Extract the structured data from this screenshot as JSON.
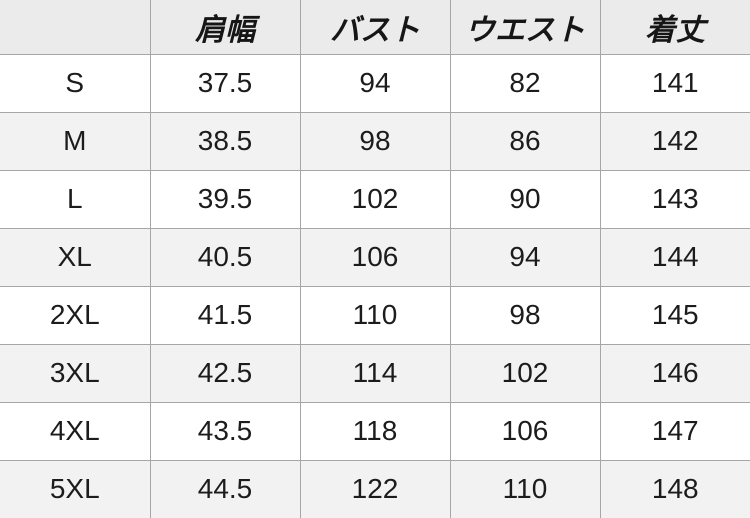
{
  "table": {
    "columns": [
      "",
      "肩幅",
      "バスト",
      "ウエスト",
      "着丈"
    ],
    "rows": [
      {
        "size": "S",
        "shoulder": "37.5",
        "bust": "94",
        "waist": "82",
        "length": "141"
      },
      {
        "size": "M",
        "shoulder": "38.5",
        "bust": "98",
        "waist": "86",
        "length": "142"
      },
      {
        "size": "L",
        "shoulder": "39.5",
        "bust": "102",
        "waist": "90",
        "length": "143"
      },
      {
        "size": "XL",
        "shoulder": "40.5",
        "bust": "106",
        "waist": "94",
        "length": "144"
      },
      {
        "size": "2XL",
        "shoulder": "41.5",
        "bust": "110",
        "waist": "98",
        "length": "145"
      },
      {
        "size": "3XL",
        "shoulder": "42.5",
        "bust": "114",
        "waist": "102",
        "length": "146"
      },
      {
        "size": "4XL",
        "shoulder": "43.5",
        "bust": "118",
        "waist": "106",
        "length": "147"
      },
      {
        "size": "5XL",
        "shoulder": "44.5",
        "bust": "122",
        "waist": "110",
        "length": "148"
      }
    ]
  },
  "colors": {
    "header_bg": "#ebebeb",
    "alt_row_bg": "#f2f2f2",
    "row_bg": "#ffffff",
    "grid_border": "#a6a6a6",
    "text": "#1c1c1c"
  },
  "chart_data": {
    "type": "table",
    "title": "",
    "columns": [
      "",
      "肩幅",
      "バスト",
      "ウエスト",
      "着丈"
    ],
    "rows": [
      [
        "S",
        37.5,
        94,
        82,
        141
      ],
      [
        "M",
        38.5,
        98,
        86,
        142
      ],
      [
        "L",
        39.5,
        102,
        90,
        143
      ],
      [
        "XL",
        40.5,
        106,
        94,
        144
      ],
      [
        "2XL",
        41.5,
        110,
        98,
        145
      ],
      [
        "3XL",
        42.5,
        114,
        102,
        146
      ],
      [
        "4XL",
        43.5,
        118,
        106,
        147
      ],
      [
        "5XL",
        44.5,
        122,
        110,
        148
      ]
    ],
    "layout": {
      "grid": true,
      "header_row_shaded": true,
      "alternating_rows": true
    }
  }
}
